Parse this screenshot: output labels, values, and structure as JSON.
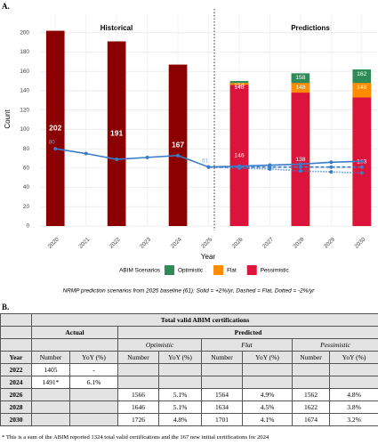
{
  "panel_a_label": "A.",
  "chart_data": {
    "type": "bar",
    "categories": [
      "2020",
      "2021",
      "2022",
      "2023",
      "2024",
      "2025",
      "2026",
      "2027",
      "2028",
      "2029",
      "2030"
    ],
    "x_label": "Year",
    "y_label": "Count",
    "ylim": [
      0,
      220
    ],
    "yticks": [
      0,
      20,
      40,
      60,
      80,
      100,
      120,
      140,
      160,
      180,
      200
    ],
    "grid": true,
    "annotations": [
      "Historical",
      "Predictions"
    ],
    "series": [
      {
        "color": "#8b0000",
        "label_position": "middle",
        "values": [
          202,
          null,
          191,
          null,
          167,
          null,
          null,
          null,
          null,
          null,
          null
        ]
      },
      {
        "name": "Optimistic",
        "color": "#2e8b57",
        "label_position": "top",
        "values": [
          null,
          null,
          null,
          null,
          null,
          null,
          150,
          null,
          158,
          null,
          162
        ]
      },
      {
        "name": "Flat",
        "color": "#ff8c00",
        "label_position": "top",
        "values": [
          null,
          null,
          null,
          null,
          null,
          null,
          148,
          null,
          148,
          null,
          148
        ]
      },
      {
        "name": "Pessimistic",
        "color": "#dc143c",
        "label_position": "middle",
        "values": [
          null,
          null,
          null,
          null,
          null,
          null,
          146,
          null,
          138,
          null,
          133
        ]
      }
    ],
    "lines": [
      {
        "color": "#3a7dc9",
        "dash": "solid",
        "values": [
          80,
          75,
          69,
          71,
          73,
          61,
          62,
          63,
          64,
          66,
          67
        ],
        "value_labels": [
          "80",
          null,
          null,
          null,
          null,
          "61",
          null,
          null,
          null,
          null,
          null
        ]
      },
      {
        "color": "#3a7dc9",
        "dash": "dashed",
        "values": [
          null,
          null,
          null,
          null,
          null,
          61,
          61,
          61,
          61,
          61,
          61
        ]
      },
      {
        "color": "#3a7dc9",
        "dash": "dotted",
        "values": [
          null,
          null,
          null,
          null,
          null,
          61,
          60,
          59,
          57,
          56,
          55
        ]
      }
    ],
    "legend_title": "ABIM Scenarios",
    "caption": "NRMP prediction scenarios from 2025 baseline (61): Solid = +2%/yr, Dashed = Flat, Dotted = -2%/yr"
  },
  "panel_b_label": "B.",
  "table": {
    "title": "Total valid ABIM certifications",
    "group_headers": [
      "Actual",
      "Predicted"
    ],
    "scenarios": [
      "Optimistic",
      "Flat",
      "Pessimistic"
    ],
    "year_header": "Year",
    "column_headers": [
      "Number",
      "YoY (%)"
    ],
    "rows": [
      [
        "2022",
        "1405",
        "-",
        null,
        null,
        null,
        null,
        null,
        null
      ],
      [
        "2024",
        "1491*",
        "6.1%",
        null,
        null,
        null,
        null,
        null,
        null
      ],
      [
        "2026",
        null,
        null,
        "1566",
        "5.1%",
        "1564",
        "4.9%",
        "1562",
        "4.8%"
      ],
      [
        "2028",
        null,
        null,
        "1646",
        "5.1%",
        "1634",
        "4.5%",
        "1622",
        "3.8%"
      ],
      [
        "2030",
        null,
        null,
        "1726",
        "4.8%",
        "1701",
        "4.1%",
        "1674",
        "3.2%"
      ]
    ],
    "footnote": "* This is a sum of the ABIM reported 1324 total valid certifications and the 167 new initial certifications for 2024"
  }
}
